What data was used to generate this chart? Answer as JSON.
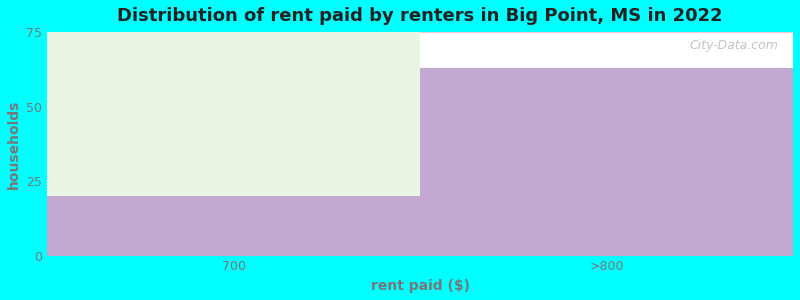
{
  "title": "Distribution of rent paid by renters in Big Point, MS in 2022",
  "xlabel": "rent paid ($)",
  "ylabel": "households",
  "categories": [
    "700",
    ">800"
  ],
  "values": [
    20,
    63
  ],
  "bar_max": 75,
  "ylim": [
    0,
    75
  ],
  "yticks": [
    0,
    25,
    50,
    75
  ],
  "bar_color": "#C3A8D1",
  "bar_color_light": "#E8F5E3",
  "background_color": "#00FFFF",
  "plot_bg_color": "#FFFFFF",
  "gridline_color": "#F2C8CE",
  "title_fontsize": 13,
  "label_fontsize": 10,
  "tick_fontsize": 9,
  "tick_color": "#777777",
  "label_color": "#777777",
  "title_color": "#222222",
  "watermark": "City-Data.com"
}
